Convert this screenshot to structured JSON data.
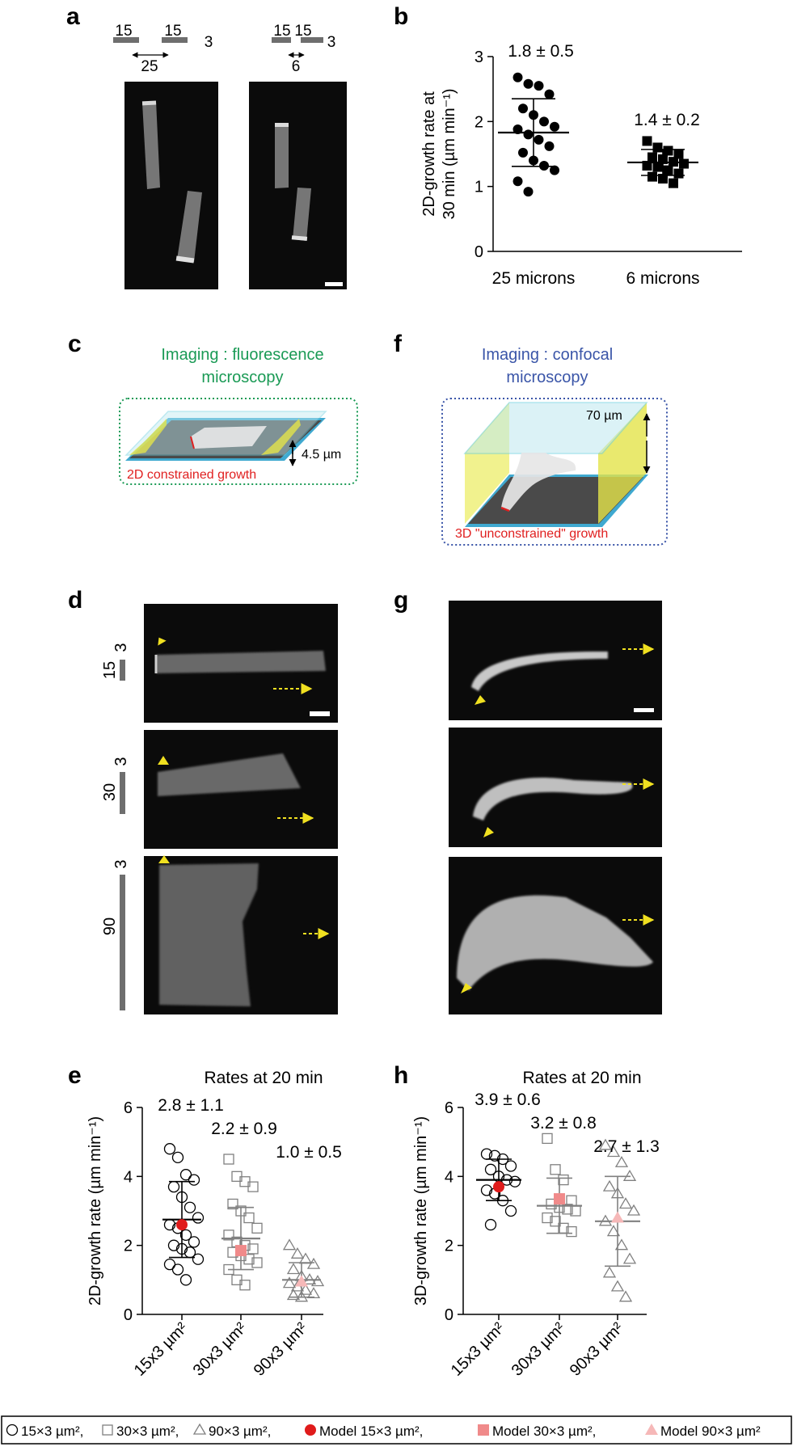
{
  "panels": {
    "a": {
      "letter": "a",
      "left_pattern": {
        "width1": "15",
        "width2": "15",
        "height": "3",
        "gap": "25"
      },
      "right_pattern": {
        "width1": "15",
        "width2": "15",
        "height": "3",
        "gap": "6"
      }
    },
    "b": {
      "letter": "b"
    },
    "c": {
      "letter": "c",
      "title_line1": "Imaging : fluorescence",
      "title_line2": "microscopy",
      "height_label": "4.5 µm",
      "caption": "2D constrained growth"
    },
    "f": {
      "letter": "f",
      "title_line1": "Imaging : confocal",
      "title_line2": "microscopy",
      "height_label": "70 µm",
      "caption": "3D \"unconstrained\" growth"
    },
    "d": {
      "letter": "d",
      "rows": [
        {
          "width": "15",
          "height": "3"
        },
        {
          "width": "30",
          "height": "3"
        },
        {
          "width": "90",
          "height": "3"
        }
      ]
    },
    "g": {
      "letter": "g"
    },
    "e": {
      "letter": "e"
    },
    "h": {
      "letter": "h"
    }
  },
  "legend": {
    "items": [
      {
        "label": "15×3 µm²,",
        "marker": "open-circle"
      },
      {
        "label": "30×3 µm²,",
        "marker": "open-square"
      },
      {
        "label": "90×3 µm²,",
        "marker": "open-triangle"
      },
      {
        "label": "Model 15×3 µm²,",
        "marker": "red-circle"
      },
      {
        "label": "Model 30×3 µm²,",
        "marker": "pink-square"
      },
      {
        "label": "Model 90×3 µm²",
        "marker": "light-pink-triangle"
      }
    ]
  },
  "colors": {
    "green_title": "#1a9a55",
    "blue_title": "#3a55a8",
    "red_caption": "#e02020",
    "arrow_yellow": "#f0e020",
    "model_red": "#e01b1b",
    "model_pink": "#f08a8a",
    "model_light_pink": "#f6b8b8",
    "gray_marker": "#808080"
  },
  "chart_data": [
    {
      "id": "b",
      "type": "scatter",
      "ylabel_line1": "2D-growth rate at",
      "ylabel_line2": "30 min (µm min⁻¹)",
      "ylim": [
        0,
        3
      ],
      "yticks": [
        0,
        1,
        2,
        3
      ],
      "categories": [
        "25 microns",
        "6 microns"
      ],
      "series": [
        {
          "category": "25 microns",
          "marker": "filled-circle",
          "mean": 1.83,
          "sd_low": 1.31,
          "sd_high": 2.35,
          "annotation": "1.8 ± 0.5",
          "points": [
            2.68,
            2.58,
            2.55,
            2.42,
            2.2,
            2.1,
            2.0,
            1.92,
            1.88,
            1.8,
            1.72,
            1.62,
            1.52,
            1.4,
            1.32,
            1.25,
            1.08,
            0.92
          ]
        },
        {
          "category": "6 microns",
          "marker": "filled-square",
          "mean": 1.37,
          "sd_low": 1.17,
          "sd_high": 1.57,
          "annotation": "1.4 ± 0.2",
          "points": [
            1.7,
            1.6,
            1.55,
            1.5,
            1.45,
            1.42,
            1.38,
            1.35,
            1.32,
            1.3,
            1.25,
            1.2,
            1.15,
            1.12,
            1.05
          ]
        }
      ]
    },
    {
      "id": "e",
      "type": "scatter",
      "title": "Rates at 20 min",
      "ylabel": "2D-growth rate (µm min⁻¹)",
      "ylim": [
        0,
        6
      ],
      "yticks": [
        0,
        2,
        4,
        6
      ],
      "categories": [
        "15x3 µm²",
        "30x3 µm²",
        "90x3 µm²"
      ],
      "series": [
        {
          "category": "15x3 µm²",
          "marker": "open-circle",
          "mean": 2.75,
          "sd_low": 1.65,
          "sd_high": 3.85,
          "annotation": "2.8 ± 1.1",
          "model": 2.6,
          "points": [
            4.8,
            4.55,
            4.05,
            3.9,
            3.7,
            3.4,
            3.1,
            2.8,
            2.6,
            2.5,
            2.3,
            2.1,
            2.0,
            1.9,
            1.8,
            1.6,
            1.45,
            1.3,
            1.0
          ]
        },
        {
          "category": "30x3 µm²",
          "marker": "open-square",
          "mean": 2.2,
          "sd_low": 1.3,
          "sd_high": 3.1,
          "annotation": "2.2 ± 0.9",
          "model": 1.85,
          "points": [
            4.5,
            4.0,
            3.85,
            3.7,
            3.2,
            3.0,
            2.8,
            2.5,
            2.3,
            2.1,
            2.0,
            1.9,
            1.8,
            1.7,
            1.6,
            1.5,
            1.3,
            1.0,
            0.85
          ]
        },
        {
          "category": "90x3 µm²",
          "marker": "open-triangle",
          "mean": 1.0,
          "sd_low": 0.5,
          "sd_high": 1.5,
          "annotation": "1.0 ± 0.5",
          "model": 0.95,
          "points": [
            2.0,
            1.75,
            1.6,
            1.45,
            1.3,
            1.1,
            1.0,
            0.95,
            0.9,
            0.8,
            0.7,
            0.6,
            0.55,
            0.5
          ]
        }
      ]
    },
    {
      "id": "h",
      "type": "scatter",
      "title": "Rates at 20 min",
      "ylabel": "3D-growth rate (µm min⁻¹)",
      "ylim": [
        0,
        6
      ],
      "yticks": [
        0,
        2,
        4,
        6
      ],
      "categories": [
        "15x3 µm²",
        "30x3 µm²",
        "90x3 µm²"
      ],
      "series": [
        {
          "category": "15x3 µm²",
          "marker": "open-circle",
          "mean": 3.9,
          "sd_low": 3.3,
          "sd_high": 4.5,
          "annotation": "3.9 ± 0.6",
          "model": 3.7,
          "points": [
            4.65,
            4.6,
            4.5,
            4.3,
            4.2,
            4.0,
            3.9,
            3.85,
            3.6,
            3.5,
            3.3,
            3.0,
            2.6
          ]
        },
        {
          "category": "30x3 µm²",
          "marker": "open-square",
          "mean": 3.15,
          "sd_low": 2.35,
          "sd_high": 3.95,
          "annotation": "3.2 ± 0.8",
          "model": 3.35,
          "points": [
            5.1,
            4.2,
            3.9,
            3.3,
            3.2,
            3.1,
            3.05,
            3.0,
            2.8,
            2.7,
            2.5,
            2.4
          ]
        },
        {
          "category": "90x3 µm²",
          "marker": "open-triangle",
          "mean": 2.7,
          "sd_low": 1.4,
          "sd_high": 4.0,
          "annotation": "2.7 ± 1.3",
          "model": 2.8,
          "points": [
            4.9,
            4.7,
            4.4,
            4.0,
            3.7,
            3.5,
            3.2,
            3.0,
            2.7,
            2.4,
            2.0,
            1.6,
            1.2,
            0.8,
            0.5
          ]
        }
      ]
    }
  ]
}
